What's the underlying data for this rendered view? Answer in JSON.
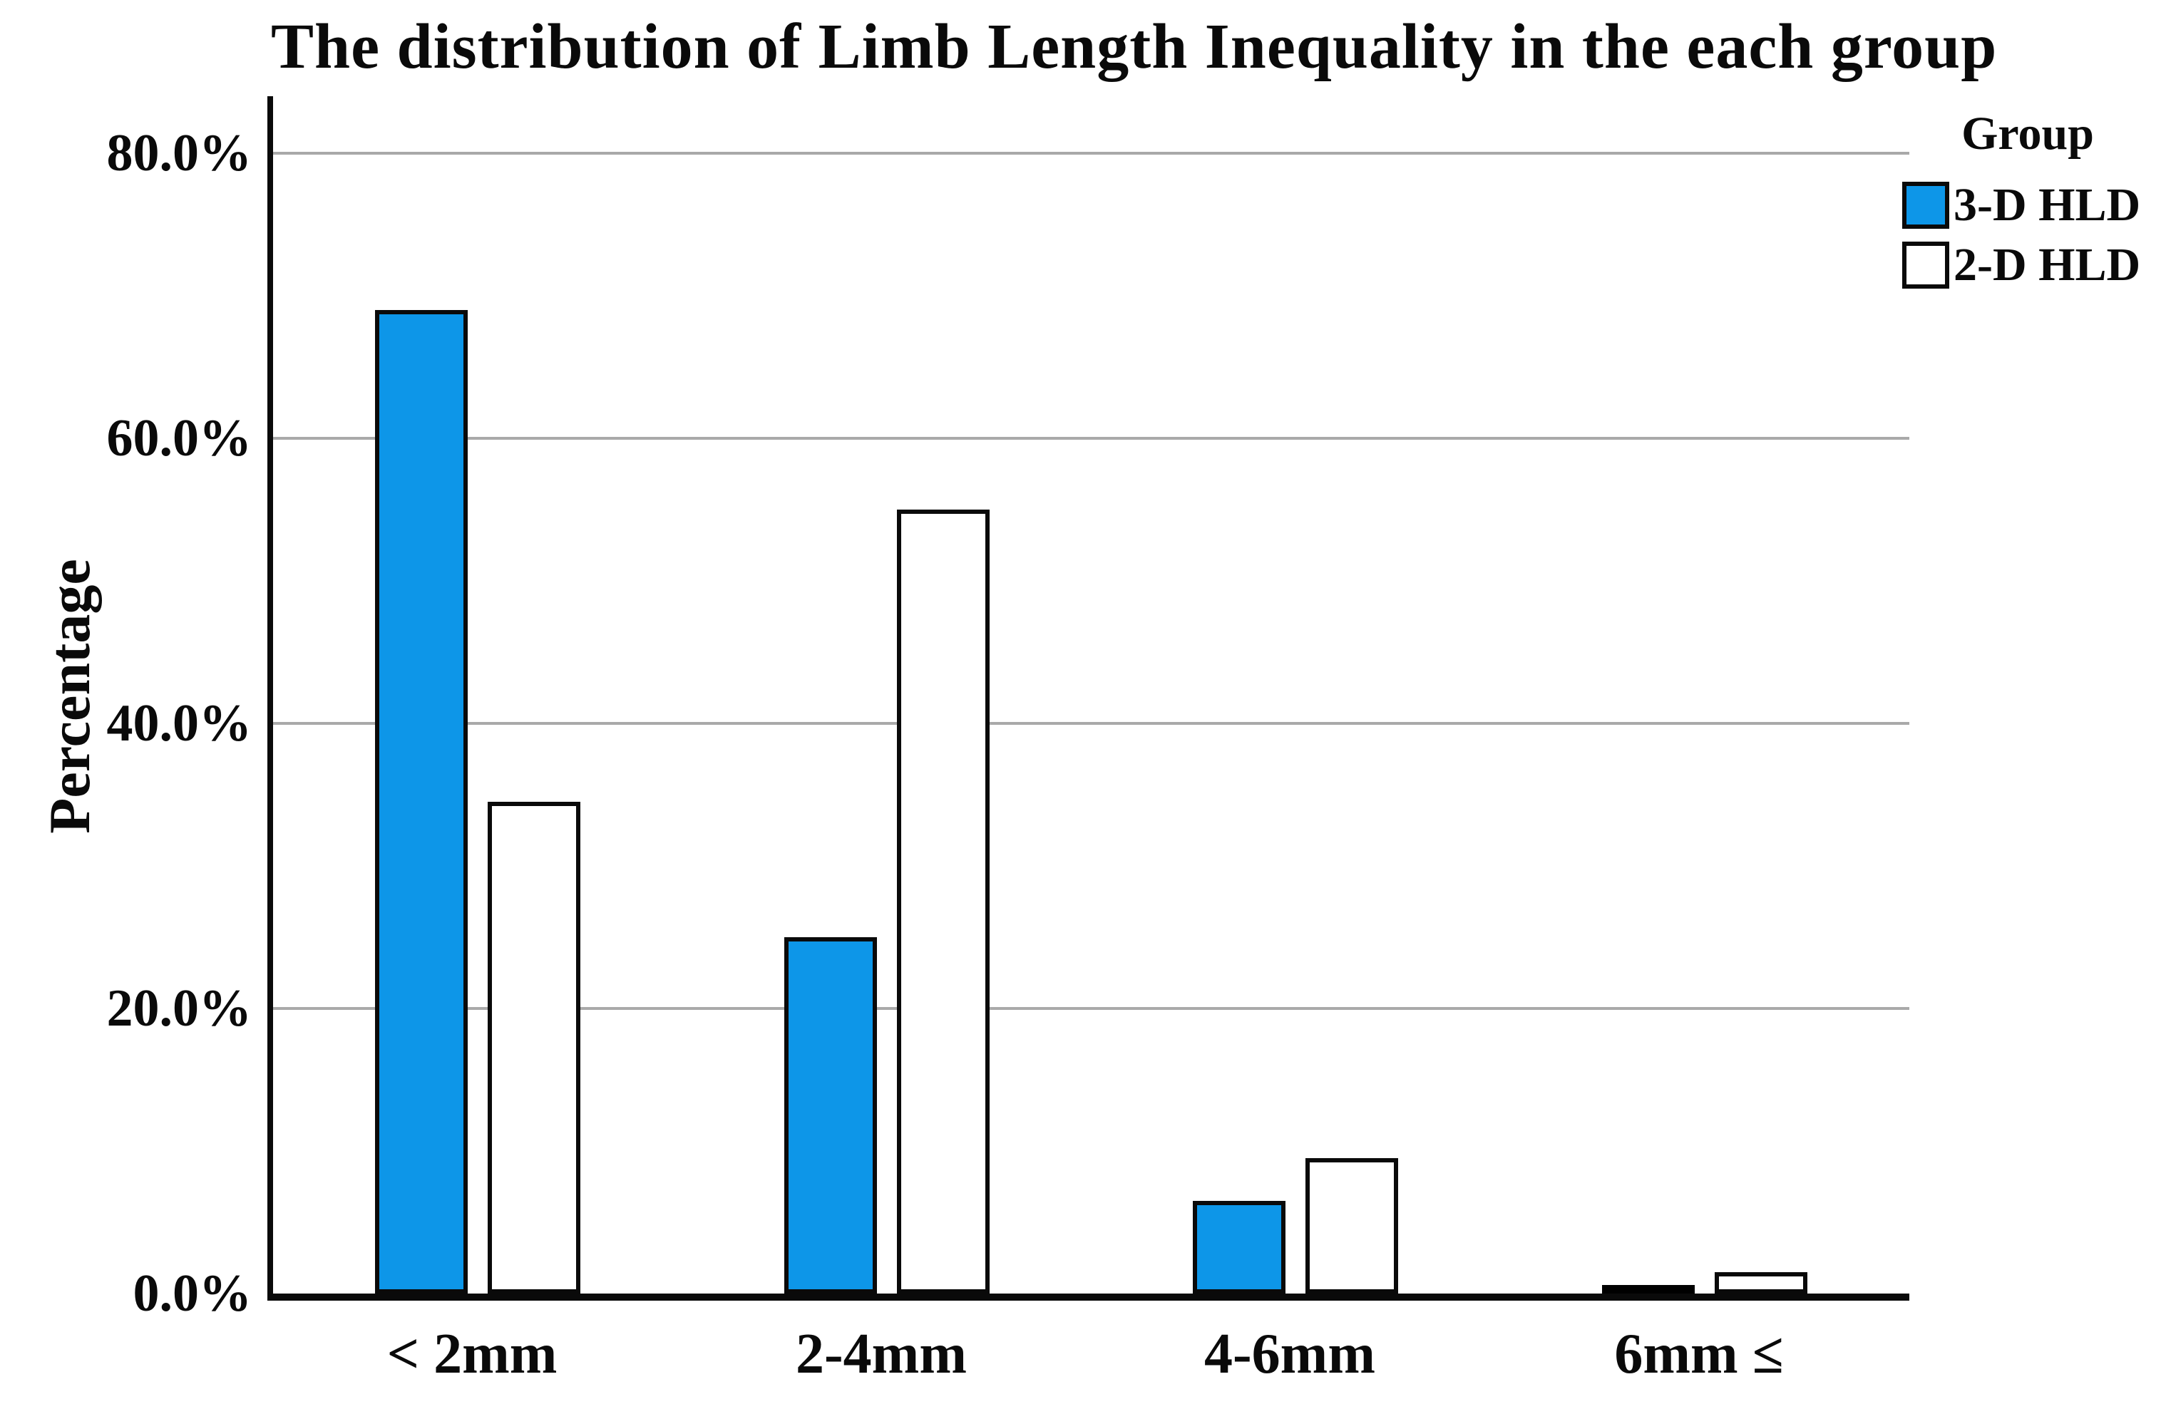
{
  "title": "The distribution of Limb Length Inequality in the each group",
  "chart_data": {
    "type": "bar",
    "title": "The distribution of Limb Length Inequality in the each group",
    "categories": [
      "< 2mm",
      "2-4mm",
      "4-6mm",
      "6mm ≤"
    ],
    "series": [
      {
        "name": "3-D HLD",
        "color": "#0D96E8",
        "values": [
          69.0,
          25.0,
          6.5,
          0.0
        ]
      },
      {
        "name": "2-D HLD",
        "color": "#FFFFFF",
        "values": [
          34.5,
          55.0,
          9.5,
          1.5
        ]
      }
    ],
    "xlabel": "",
    "ylabel": "Percentage",
    "ylim": [
      0,
      84
    ],
    "yticks": [
      {
        "value": 80,
        "label": "80.0%"
      },
      {
        "value": 60,
        "label": "60.0%"
      },
      {
        "value": 40,
        "label": "40.0%"
      },
      {
        "value": 20,
        "label": "20.0%"
      },
      {
        "value": 0,
        "label": "0.0%"
      }
    ],
    "grid": true,
    "legend_title": "Group",
    "legend_position": "top-right",
    "colors": {
      "bar_blue": "#0D96E8",
      "bar_white": "#FFFFFF",
      "bar_border": "#0A0A0A",
      "gridline": "#A9A9A9",
      "axis": "#0A0A0A",
      "background": "#FFFFFF",
      "text": "#0A0A0A"
    }
  }
}
